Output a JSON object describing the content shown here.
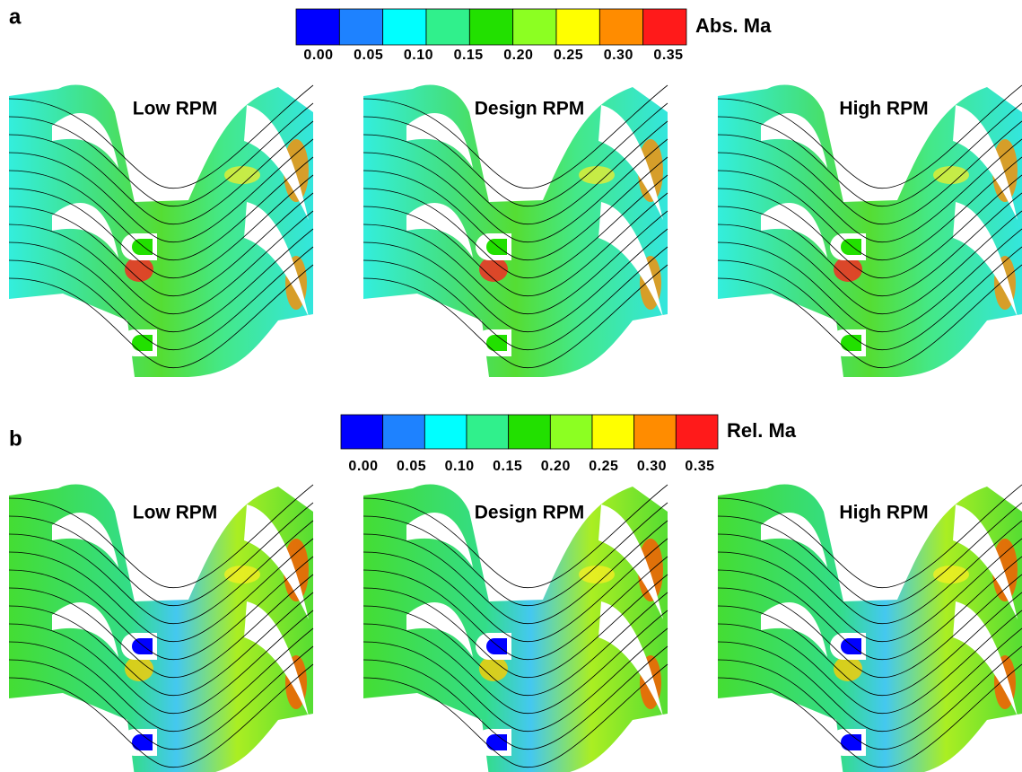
{
  "figure": {
    "panels": [
      {
        "label": "a",
        "colorbar": {
          "title": "Abs. Ma",
          "ticks": [
            "0.00",
            "0.05",
            "0.10",
            "0.15",
            "0.20",
            "0.25",
            "0.30",
            "0.35"
          ],
          "colors": [
            "#0000ff",
            "#1e82ff",
            "#00ffff",
            "#30f08c",
            "#22e000",
            "#8cff22",
            "#ffff00",
            "#ff8c00",
            "#ff1a1a"
          ]
        },
        "plots": [
          {
            "title": "Low RPM"
          },
          {
            "title": "Design RPM"
          },
          {
            "title": "High RPM"
          }
        ]
      },
      {
        "label": "b",
        "colorbar": {
          "title": "Rel. Ma",
          "ticks": [
            "0.00",
            "0.05",
            "0.10",
            "0.15",
            "0.20",
            "0.25",
            "0.30",
            "0.35"
          ],
          "colors": [
            "#0000ff",
            "#1e82ff",
            "#00ffff",
            "#30f08c",
            "#22e000",
            "#8cff22",
            "#ffff00",
            "#ff8c00",
            "#ff1a1a"
          ]
        },
        "plots": [
          {
            "title": "Low RPM"
          },
          {
            "title": "Design RPM"
          },
          {
            "title": "High RPM"
          }
        ]
      }
    ]
  }
}
